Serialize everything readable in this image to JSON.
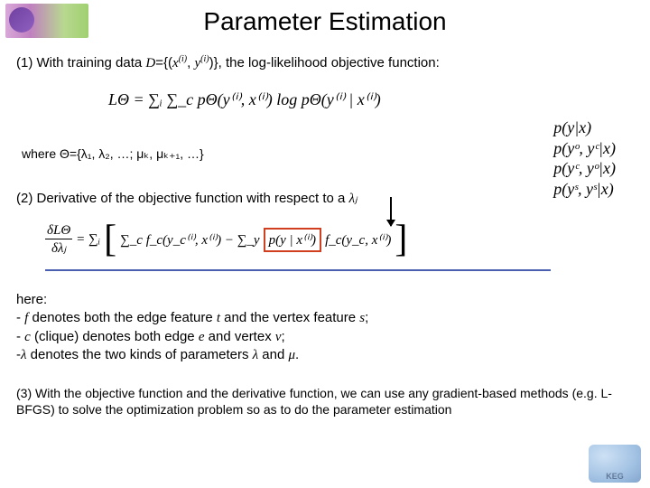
{
  "title": "Parameter Estimation",
  "line1_pre": "(1) With training data ",
  "line1_D": "D",
  "line1_mid": "={(",
  "line1_x": "x",
  "line1_sup": "(i)",
  "line1_comma": ", ",
  "line1_y": "y",
  "line1_post": ")}, the log-likelihood objective function:",
  "eq1": "LΘ = ∑ᵢ ∑_c pΘ(y⁽ⁱ⁾, x⁽ⁱ⁾) log pΘ(y⁽ⁱ⁾ | x⁽ⁱ⁾)",
  "where": "where Θ={λ₁, λ₂, …; μₖ, μₖ₊₁, …}",
  "line2_pre": "(2) Derivative of the objective function with respect to a ",
  "line2_lam": "λⱼ",
  "pbox": {
    "l1": "p(y|x)",
    "l2": "p(yᵒ, yᶜ|x)",
    "l3": "p(yᶜ, yᵒ|x)",
    "l4": "p(yˢ, yˢ|x)"
  },
  "frac_num": "δLΘ",
  "frac_den": "δλⱼ",
  "eq2_a": " = ∑ᵢ ",
  "eq2_b": "∑_c f_c(y_c⁽ⁱ⁾, x⁽ⁱ⁾) − ∑_y ",
  "eq2_red": "p(y | x⁽ⁱ⁾)",
  "eq2_c": " f_c(y_c, x⁽ⁱ⁾)",
  "here": {
    "h": "here:",
    "b1a": "  - ",
    "b1f": "f",
    "b1b": " denotes both the edge feature ",
    "b1t": "t",
    "b1c": " and the vertex feature ",
    "b1s": "s",
    "b1d": ";",
    "b2a": "  - ",
    "b2c": "c",
    "b2b": " (clique) denotes both edge ",
    "b2e": "e",
    "b2d": " and vertex ",
    "b2v": "v",
    "b2f": ";",
    "b3a": "  -",
    "b3l": "λ",
    "b3b": " denotes the two kinds of parameters ",
    "b3l2": "λ",
    "b3c": " and ",
    "b3m": "μ",
    "b3d": "."
  },
  "line3": "(3) With the objective function and the derivative function, we can use any gradient-based methods (e.g. L-BFGS) to solve the optimization problem so as to do the parameter estimation"
}
